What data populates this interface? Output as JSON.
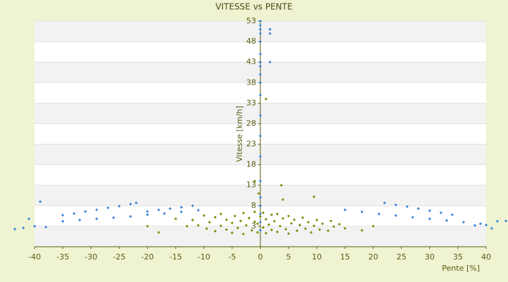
{
  "chart_data": {
    "type": "scatter",
    "title": "VITESSE vs PENTE",
    "x_label": "Pente [%]",
    "y_label": "Vitesse [km/h]",
    "xlim": [
      -40,
      40
    ],
    "xticks": [
      -40,
      -35,
      -30,
      -25,
      -20,
      -15,
      -10,
      -5,
      0,
      5,
      10,
      15,
      20,
      25,
      30,
      35,
      40
    ],
    "ylim": [
      -2,
      53
    ],
    "yticks": [
      3,
      8,
      13,
      18,
      23,
      28,
      33,
      38,
      43,
      48,
      53
    ],
    "grid": true,
    "series": [
      {
        "color": "#2e7fd6",
        "x": [
          0,
          0,
          0,
          0,
          0,
          0,
          0,
          0,
          0,
          0,
          0,
          0,
          0,
          0,
          0,
          0,
          0,
          0,
          0,
          0,
          1.7,
          1.7,
          1.7,
          -35,
          -33,
          -31,
          -29,
          -27,
          -25,
          -23,
          -22,
          -35,
          -32,
          -29,
          -26,
          -23,
          -20,
          -17,
          -14,
          -11,
          -20,
          -18,
          -16,
          -14,
          -12,
          -43.5,
          -42,
          -39,
          -40,
          -38,
          -41,
          22,
          24,
          26,
          28,
          30,
          32,
          34,
          15,
          18,
          21,
          24,
          27,
          30,
          33,
          36,
          39,
          41,
          42,
          43.5,
          38,
          40
        ],
        "values": [
          2,
          4,
          6,
          8,
          10,
          14,
          20,
          25,
          30,
          35,
          38,
          40,
          42,
          43,
          45,
          48,
          50,
          51,
          52,
          53,
          50,
          51,
          43,
          5.7,
          6.1,
          6.6,
          7.0,
          7.5,
          7.9,
          8.4,
          8.7,
          4.2,
          4.5,
          4.8,
          5.1,
          5.4,
          5.8,
          6.1,
          6.5,
          6.9,
          6.6,
          7.0,
          7.3,
          7.6,
          8.0,
          2.3,
          2.6,
          9.0,
          3.0,
          2.8,
          4.8,
          8.7,
          8.2,
          7.8,
          7.3,
          6.8,
          6.3,
          5.8,
          7.0,
          6.5,
          6.0,
          5.6,
          5.2,
          4.8,
          4.4,
          4.0,
          3.6,
          2.5,
          4.2,
          4.3,
          3.2,
          3.3
        ]
      },
      {
        "color": "#7a8a00",
        "x": [
          -12,
          -11,
          -10,
          -9.5,
          -9,
          -8,
          -8,
          -7,
          -7,
          -6,
          -6,
          -5,
          -5,
          -4.5,
          -4,
          -3.5,
          -3,
          -3,
          -2.5,
          -2,
          -1.5,
          -1,
          -1,
          -0.5,
          -0.5,
          0,
          0.5,
          0.5,
          1,
          1,
          1.5,
          2,
          2,
          2.5,
          3,
          3,
          3.5,
          4,
          4.5,
          5,
          5,
          5.5,
          6,
          6.5,
          7,
          7.5,
          8,
          8.5,
          9,
          9.5,
          10,
          10.5,
          11,
          12,
          12.5,
          13,
          14,
          15,
          -13,
          -15,
          -18,
          -20,
          18,
          20,
          3.7,
          1,
          9.5,
          -1,
          4,
          -0.3
        ],
        "values": [
          4.5,
          3.2,
          5.6,
          2.4,
          4.0,
          1.8,
          5.2,
          3.1,
          6.0,
          2.2,
          4.6,
          1.4,
          3.8,
          5.5,
          2.6,
          4.3,
          1.1,
          6.2,
          3.2,
          5.0,
          2.0,
          4.1,
          6.5,
          1.5,
          3.6,
          5.4,
          2.7,
          6.3,
          4.7,
          1.3,
          3.4,
          5.8,
          2.1,
          4.2,
          1.6,
          6.0,
          3.0,
          4.9,
          2.3,
          5.5,
          1.2,
          3.7,
          4.6,
          1.9,
          3.3,
          5.1,
          2.4,
          4.0,
          1.5,
          3.1,
          4.5,
          2.2,
          3.6,
          1.9,
          4.3,
          2.9,
          3.5,
          2.5,
          3.0,
          4.8,
          1.5,
          3.0,
          2.0,
          3.0,
          13,
          34,
          10.2,
          14,
          9.5,
          11
        ]
      }
    ]
  }
}
